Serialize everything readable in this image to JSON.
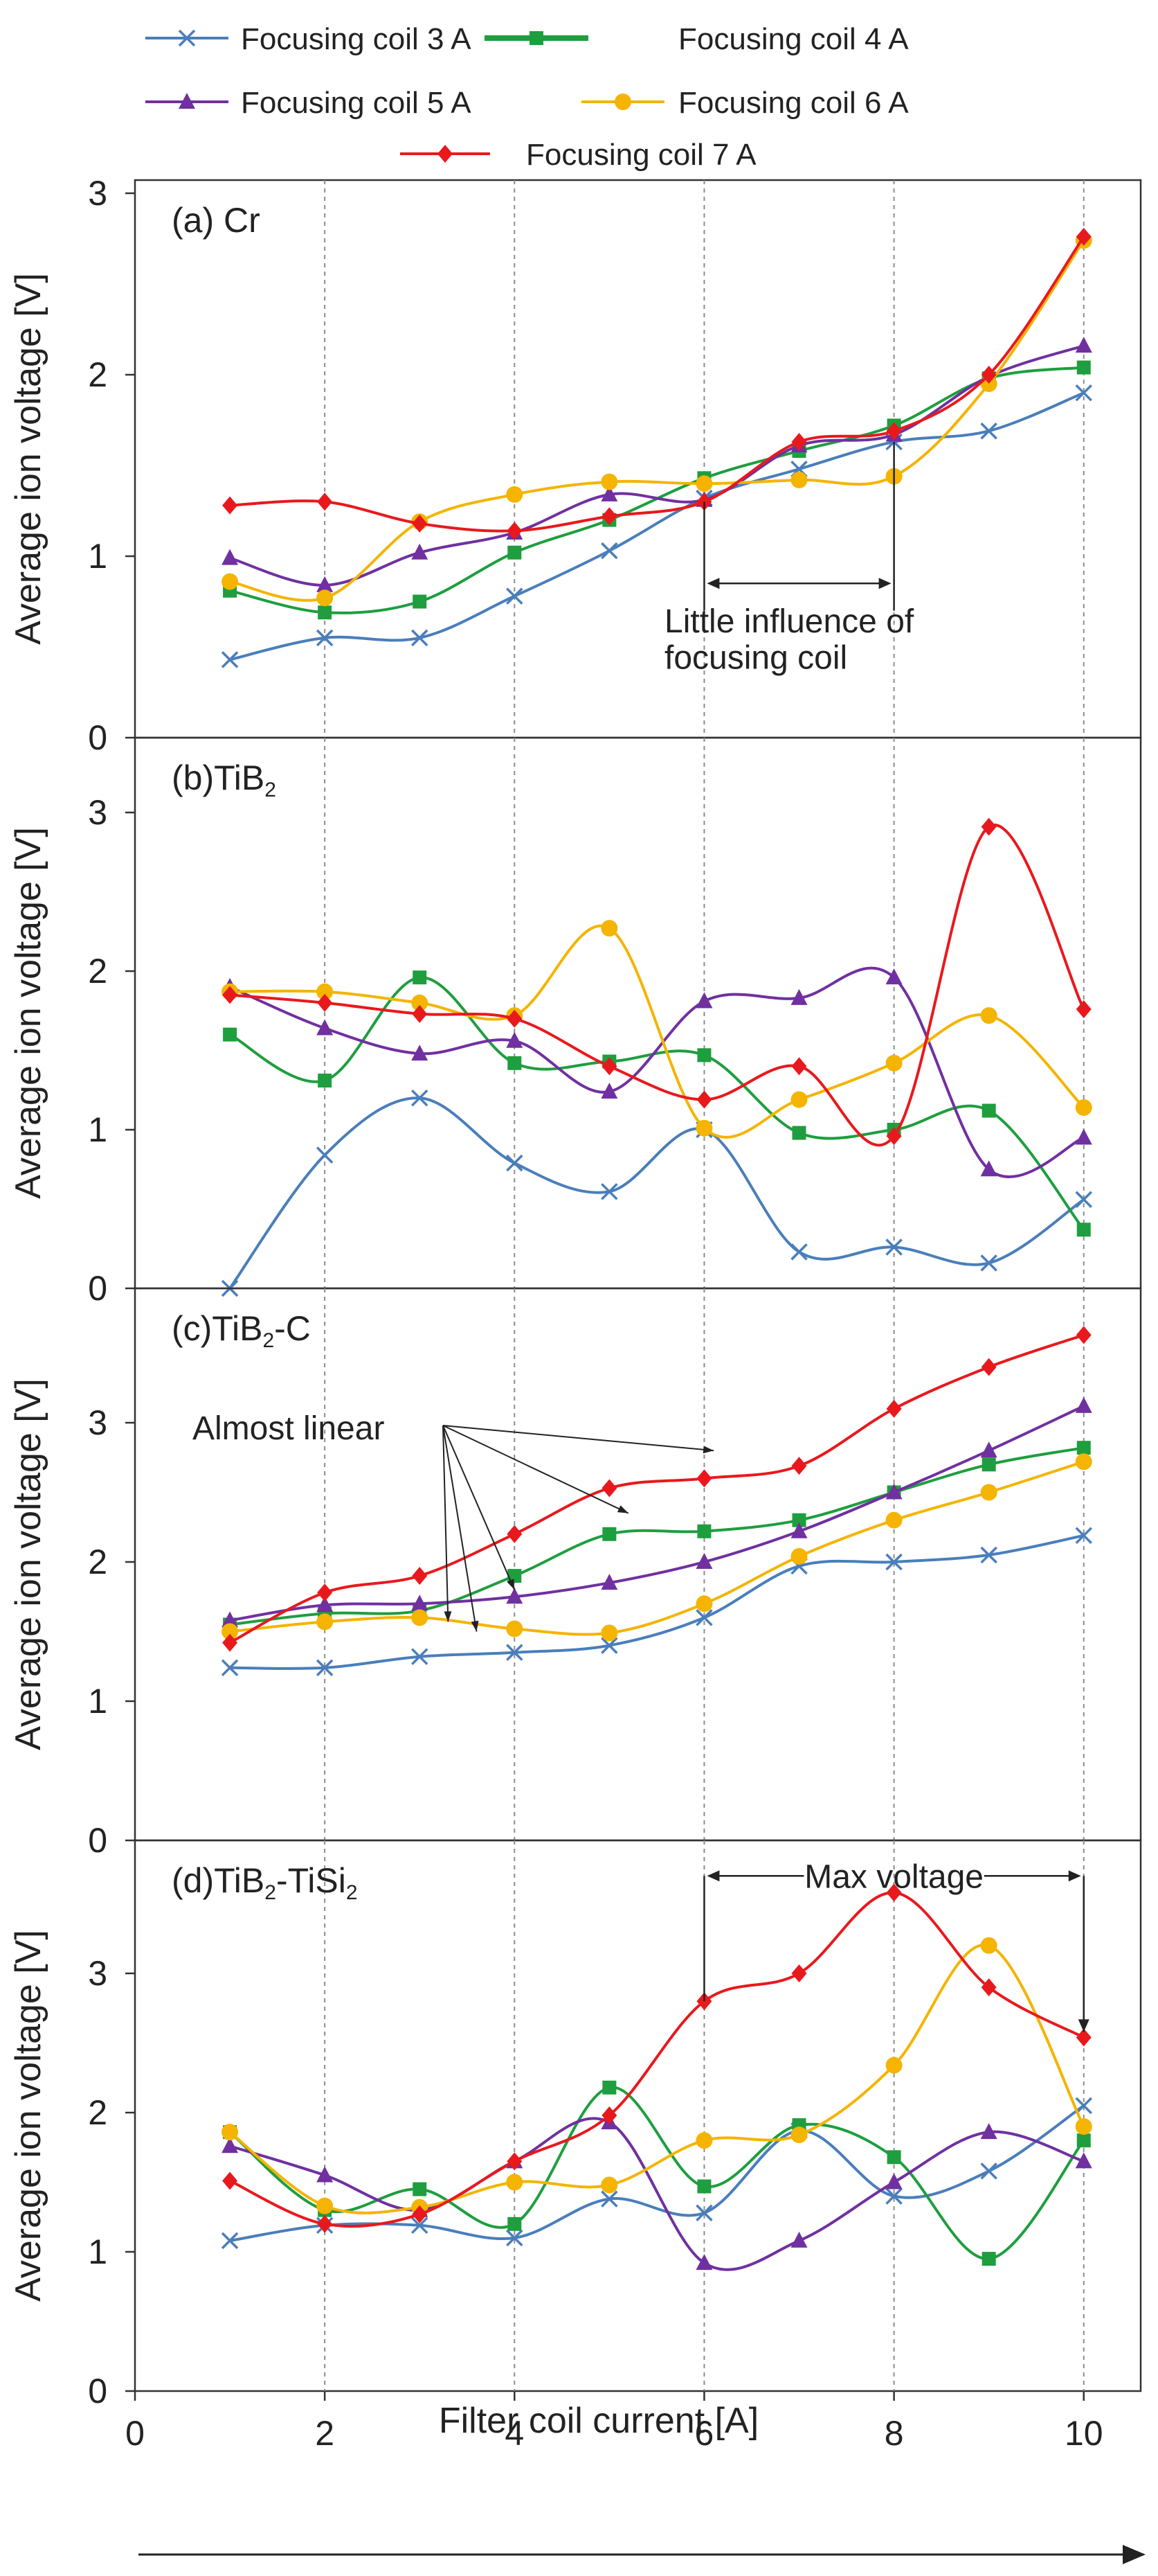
{
  "chart_data": {
    "type": "line",
    "xlabel": "Filter coil current [A]",
    "xlim": [
      0,
      10.6
    ],
    "xticks": [
      0,
      2,
      4,
      6,
      8,
      10
    ],
    "x": [
      1,
      2,
      3,
      4,
      5,
      6,
      7,
      8,
      9,
      10
    ],
    "legend": [
      {
        "name": "Focusing coil 3 A",
        "color": "#4a7ebb",
        "marker": "x"
      },
      {
        "name": "Focusing coil 4 A",
        "color": "#1e9e3e",
        "marker": "square"
      },
      {
        "name": "Focusing coil 5 A",
        "color": "#7030a0",
        "marker": "triangle"
      },
      {
        "name": "Focusing coil 6 A",
        "color": "#f4b400",
        "marker": "circle"
      },
      {
        "name": "Focusing coil 7 A",
        "color": "#e8191d",
        "marker": "diamond"
      }
    ],
    "panels": [
      {
        "label": "(a) Cr",
        "label_main": "(a) Cr",
        "label_sub": "",
        "label_tail": "",
        "ylabel": "Average ion voltage [V]",
        "ylim": [
          0,
          3
        ],
        "yticks": [
          0,
          1,
          2,
          3
        ],
        "series": [
          {
            "name": "Focusing coil 3 A",
            "values": [
              0.43,
              0.55,
              0.55,
              0.78,
              1.03,
              1.32,
              1.48,
              1.63,
              1.69,
              1.9
            ]
          },
          {
            "name": "Focusing coil 4 A",
            "values": [
              0.81,
              0.69,
              0.75,
              1.02,
              1.2,
              1.43,
              1.58,
              1.72,
              1.98,
              2.04
            ]
          },
          {
            "name": "Focusing coil 5 A",
            "values": [
              0.99,
              0.84,
              1.02,
              1.13,
              1.34,
              1.31,
              1.61,
              1.67,
              1.99,
              2.16
            ]
          },
          {
            "name": "Focusing coil 6 A",
            "values": [
              0.86,
              0.77,
              1.19,
              1.34,
              1.41,
              1.4,
              1.42,
              1.44,
              1.95,
              2.74
            ]
          },
          {
            "name": "Focusing coil 7 A",
            "values": [
              1.28,
              1.3,
              1.18,
              1.14,
              1.22,
              1.3,
              1.63,
              1.69,
              2.0,
              2.76
            ]
          }
        ],
        "annotation": {
          "line1": "Little influence of",
          "line2": "focusing coil"
        }
      },
      {
        "label": "(b)TiB2",
        "label_main": "(b)TiB",
        "label_sub": "2",
        "label_tail": "",
        "ylabel": "Average ion voltage [V]",
        "ylim": [
          0,
          3.5
        ],
        "yticks": [
          0,
          1,
          2,
          3
        ],
        "series": [
          {
            "name": "Focusing coil 3 A",
            "values": [
              0.0,
              0.84,
              1.2,
              0.79,
              0.61,
              1.0,
              0.23,
              0.26,
              0.16,
              0.56
            ]
          },
          {
            "name": "Focusing coil 4 A",
            "values": [
              1.6,
              1.31,
              1.96,
              1.42,
              1.43,
              1.47,
              0.98,
              1.0,
              1.12,
              0.37
            ]
          },
          {
            "name": "Focusing coil 5 A",
            "values": [
              1.9,
              1.64,
              1.48,
              1.56,
              1.24,
              1.81,
              1.83,
              1.96,
              0.75,
              0.95
            ]
          },
          {
            "name": "Focusing coil 6 A",
            "values": [
              1.87,
              1.87,
              1.8,
              1.72,
              2.27,
              1.01,
              1.19,
              1.42,
              1.72,
              1.14
            ]
          },
          {
            "name": "Focusing coil 7 A",
            "values": [
              1.85,
              1.8,
              1.73,
              1.7,
              1.4,
              1.19,
              1.4,
              0.96,
              2.91,
              1.76
            ]
          }
        ]
      },
      {
        "label": "(c)TiB2-C",
        "label_main": "(c)TiB",
        "label_sub": "2",
        "label_tail": "-C",
        "ylabel": "Average ion voltage [V]",
        "ylim": [
          0,
          3.9
        ],
        "yticks": [
          0,
          1,
          2,
          3
        ],
        "series": [
          {
            "name": "Focusing coil 3 A",
            "values": [
              1.24,
              1.24,
              1.32,
              1.35,
              1.4,
              1.6,
              1.97,
              2.0,
              2.05,
              2.19
            ]
          },
          {
            "name": "Focusing coil 4 A",
            "values": [
              1.55,
              1.63,
              1.65,
              1.9,
              2.2,
              2.22,
              2.3,
              2.5,
              2.7,
              2.82
            ]
          },
          {
            "name": "Focusing coil 5 A",
            "values": [
              1.58,
              1.69,
              1.7,
              1.75,
              1.85,
              2.0,
              2.22,
              2.5,
              2.8,
              3.12
            ]
          },
          {
            "name": "Focusing coil 6 A",
            "values": [
              1.5,
              1.57,
              1.6,
              1.52,
              1.49,
              1.7,
              2.04,
              2.3,
              2.5,
              2.72
            ]
          },
          {
            "name": "Focusing coil 7 A",
            "values": [
              1.42,
              1.78,
              1.9,
              2.2,
              2.53,
              2.6,
              2.69,
              3.1,
              3.4,
              3.63
            ]
          }
        ],
        "annotation": {
          "text": "Almost linear"
        }
      },
      {
        "label": "(d)TiB2-TiSi2",
        "label_main": "(d)TiB",
        "label_sub": "2",
        "label_tail": "-TiSi",
        "label_sub2": "2",
        "ylabel": "Average ion voltage [V]",
        "ylim": [
          0,
          3.9
        ],
        "yticks": [
          0,
          1,
          2,
          3
        ],
        "series": [
          {
            "name": "Focusing coil 3 A",
            "values": [
              1.08,
              1.19,
              1.19,
              1.1,
              1.38,
              1.28,
              1.87,
              1.4,
              1.58,
              2.05
            ]
          },
          {
            "name": "Focusing coil 4 A",
            "values": [
              1.86,
              1.3,
              1.45,
              1.2,
              2.18,
              1.47,
              1.91,
              1.68,
              0.95,
              1.8
            ]
          },
          {
            "name": "Focusing coil 5 A",
            "values": [
              1.76,
              1.55,
              1.3,
              1.65,
              1.93,
              0.92,
              1.08,
              1.5,
              1.86,
              1.65
            ]
          },
          {
            "name": "Focusing coil 6 A",
            "values": [
              1.86,
              1.33,
              1.32,
              1.5,
              1.48,
              1.8,
              1.84,
              2.34,
              3.2,
              1.9
            ]
          },
          {
            "name": "Focusing coil 7 A",
            "values": [
              1.51,
              1.2,
              1.27,
              1.65,
              1.98,
              2.8,
              3.0,
              3.58,
              2.9,
              2.54
            ]
          }
        ],
        "annotation": {
          "text": "Max voltage"
        }
      }
    ]
  }
}
